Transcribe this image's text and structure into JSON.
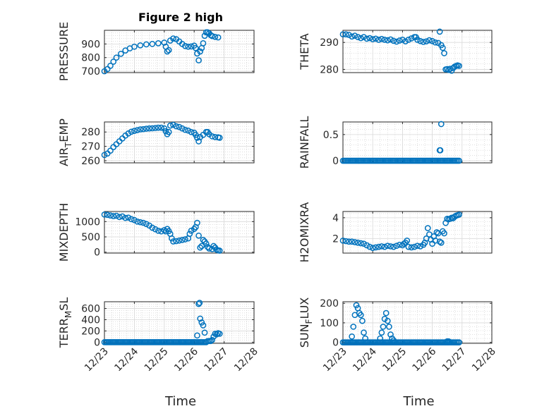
{
  "chart_data": [
    {
      "type": "scatter",
      "id": "pressure",
      "title": "Figure 2 high",
      "ylabel": "PRESSURE",
      "yticks": [
        700,
        800,
        900
      ],
      "ytick_labels": [
        "700",
        "800",
        "900"
      ],
      "ylim": [
        690,
        1000
      ],
      "xlim": [
        0,
        5
      ],
      "xticks": [
        0,
        1,
        2,
        3,
        4,
        5
      ],
      "show_xticklabels": false,
      "points": [
        [
          0,
          700
        ],
        [
          0.1,
          716
        ],
        [
          0.2,
          740
        ],
        [
          0.3,
          770
        ],
        [
          0.4,
          800
        ],
        [
          0.55,
          828
        ],
        [
          0.7,
          852
        ],
        [
          0.85,
          868
        ],
        [
          1.0,
          880
        ],
        [
          1.2,
          890
        ],
        [
          1.4,
          897
        ],
        [
          1.6,
          900
        ],
        [
          1.8,
          905
        ],
        [
          2.0,
          910
        ],
        [
          2.05,
          880
        ],
        [
          2.1,
          845
        ],
        [
          2.15,
          855
        ],
        [
          2.2,
          925
        ],
        [
          2.3,
          940
        ],
        [
          2.4,
          935
        ],
        [
          2.5,
          918
        ],
        [
          2.6,
          900
        ],
        [
          2.7,
          885
        ],
        [
          2.8,
          880
        ],
        [
          2.9,
          882
        ],
        [
          3.0,
          888
        ],
        [
          3.05,
          870
        ],
        [
          3.1,
          830
        ],
        [
          3.15,
          780
        ],
        [
          3.2,
          845
        ],
        [
          3.25,
          870
        ],
        [
          3.3,
          905
        ],
        [
          3.35,
          960
        ],
        [
          3.4,
          985
        ],
        [
          3.45,
          985
        ],
        [
          3.5,
          978
        ],
        [
          3.55,
          965
        ],
        [
          3.6,
          958
        ],
        [
          3.7,
          952
        ],
        [
          3.8,
          948
        ]
      ]
    },
    {
      "type": "scatter",
      "id": "theta",
      "ylabel": "THETA",
      "yticks": [
        280,
        290
      ],
      "ytick_labels": [
        "280",
        "290"
      ],
      "ylim": [
        278.8,
        294.5
      ],
      "xlim": [
        0,
        5
      ],
      "xticks": [
        0,
        1,
        2,
        3,
        4,
        5
      ],
      "show_xticklabels": false,
      "points": [
        [
          0,
          293
        ],
        [
          0.1,
          293
        ],
        [
          0.2,
          292.8
        ],
        [
          0.3,
          292.2
        ],
        [
          0.4,
          292.5
        ],
        [
          0.5,
          292
        ],
        [
          0.6,
          291.6
        ],
        [
          0.7,
          292
        ],
        [
          0.8,
          291.4
        ],
        [
          0.9,
          291.6
        ],
        [
          1.0,
          291.2
        ],
        [
          1.1,
          291.4
        ],
        [
          1.2,
          291
        ],
        [
          1.3,
          291.3
        ],
        [
          1.4,
          291
        ],
        [
          1.5,
          290.8
        ],
        [
          1.6,
          291.1
        ],
        [
          1.7,
          290.6
        ],
        [
          1.8,
          290.3
        ],
        [
          1.9,
          290.7
        ],
        [
          2.0,
          291
        ],
        [
          2.1,
          290.4
        ],
        [
          2.2,
          291
        ],
        [
          2.3,
          291.5
        ],
        [
          2.4,
          292
        ],
        [
          2.45,
          292
        ],
        [
          2.5,
          291
        ],
        [
          2.6,
          290.5
        ],
        [
          2.7,
          290.2
        ],
        [
          2.8,
          290.4
        ],
        [
          2.9,
          290.8
        ],
        [
          3.0,
          290.5
        ],
        [
          3.1,
          290
        ],
        [
          3.2,
          289.8
        ],
        [
          3.25,
          294
        ],
        [
          3.3,
          289
        ],
        [
          3.35,
          288
        ],
        [
          3.4,
          286
        ],
        [
          3.45,
          280
        ],
        [
          3.5,
          280.1
        ],
        [
          3.55,
          279.8
        ],
        [
          3.6,
          280.2
        ],
        [
          3.65,
          279.5
        ],
        [
          3.7,
          280.5
        ],
        [
          3.75,
          281
        ],
        [
          3.8,
          281.3
        ],
        [
          3.85,
          281.5
        ],
        [
          3.9,
          281.3
        ]
      ]
    },
    {
      "type": "scatter",
      "id": "airtemp",
      "ylabel_main": "AIR",
      "ylabel_sub": "T",
      "ylabel_tail": "EMP",
      "yticks": [
        260,
        270,
        280
      ],
      "ytick_labels": [
        "260",
        "270",
        "280"
      ],
      "ylim": [
        258.5,
        287
      ],
      "xlim": [
        0,
        5
      ],
      "xticks": [
        0,
        1,
        2,
        3,
        4,
        5
      ],
      "show_xticklabels": false,
      "points": [
        [
          0,
          264
        ],
        [
          0.1,
          265
        ],
        [
          0.2,
          267
        ],
        [
          0.3,
          269.5
        ],
        [
          0.4,
          271.5
        ],
        [
          0.5,
          273.5
        ],
        [
          0.6,
          275.5
        ],
        [
          0.7,
          277.5
        ],
        [
          0.8,
          279
        ],
        [
          0.9,
          280.2
        ],
        [
          1.0,
          280.8
        ],
        [
          1.1,
          281.3
        ],
        [
          1.2,
          281.8
        ],
        [
          1.3,
          282
        ],
        [
          1.4,
          282.3
        ],
        [
          1.5,
          282.5
        ],
        [
          1.6,
          282.6
        ],
        [
          1.7,
          282.8
        ],
        [
          1.8,
          283
        ],
        [
          1.9,
          283
        ],
        [
          2.0,
          282.5
        ],
        [
          2.05,
          280.5
        ],
        [
          2.1,
          278.5
        ],
        [
          2.15,
          280
        ],
        [
          2.2,
          284.5
        ],
        [
          2.3,
          285
        ],
        [
          2.4,
          284
        ],
        [
          2.5,
          283.5
        ],
        [
          2.6,
          282.5
        ],
        [
          2.7,
          281.5
        ],
        [
          2.8,
          281
        ],
        [
          2.9,
          280
        ],
        [
          3.0,
          279.5
        ],
        [
          3.05,
          278
        ],
        [
          3.1,
          276
        ],
        [
          3.15,
          273.5
        ],
        [
          3.2,
          276.5
        ],
        [
          3.3,
          278
        ],
        [
          3.4,
          280
        ],
        [
          3.45,
          280
        ],
        [
          3.5,
          278.5
        ],
        [
          3.6,
          277
        ],
        [
          3.7,
          276.5
        ],
        [
          3.8,
          276.3
        ],
        [
          3.85,
          276
        ]
      ]
    },
    {
      "type": "scatter",
      "id": "rainfall",
      "ylabel": "RAINFALL",
      "yticks": [
        0,
        0.5
      ],
      "ytick_labels": [
        "0",
        "0.5"
      ],
      "ylim": [
        -0.04,
        0.74
      ],
      "xlim": [
        0,
        5
      ],
      "xticks": [
        0,
        1,
        2,
        3,
        4,
        5
      ],
      "show_xticklabels": false,
      "zero_range": [
        0,
        3.9
      ],
      "zero_step": 0.05,
      "points": [
        [
          3.25,
          0.2
        ],
        [
          3.27,
          0.2
        ],
        [
          3.3,
          0.7
        ]
      ]
    },
    {
      "type": "scatter",
      "id": "mixdepth",
      "ylabel": "MIXDEPTH",
      "yticks": [
        0,
        500,
        1000
      ],
      "ytick_labels": [
        "0",
        "500",
        "1000"
      ],
      "ylim": [
        -30,
        1330
      ],
      "xlim": [
        0,
        5
      ],
      "xticks": [
        0,
        1,
        2,
        3,
        4,
        5
      ],
      "show_xticklabels": false,
      "points": [
        [
          0,
          1230
        ],
        [
          0.1,
          1220
        ],
        [
          0.2,
          1200
        ],
        [
          0.3,
          1180
        ],
        [
          0.4,
          1190
        ],
        [
          0.5,
          1150
        ],
        [
          0.6,
          1170
        ],
        [
          0.7,
          1120
        ],
        [
          0.8,
          1130
        ],
        [
          0.9,
          1080
        ],
        [
          1.0,
          1050
        ],
        [
          1.1,
          1000
        ],
        [
          1.2,
          980
        ],
        [
          1.3,
          960
        ],
        [
          1.4,
          920
        ],
        [
          1.5,
          870
        ],
        [
          1.6,
          800
        ],
        [
          1.7,
          750
        ],
        [
          1.8,
          700
        ],
        [
          1.9,
          680
        ],
        [
          2.0,
          720
        ],
        [
          2.05,
          680
        ],
        [
          2.1,
          760
        ],
        [
          2.15,
          690
        ],
        [
          2.2,
          600
        ],
        [
          2.25,
          450
        ],
        [
          2.3,
          350
        ],
        [
          2.4,
          360
        ],
        [
          2.5,
          380
        ],
        [
          2.6,
          400
        ],
        [
          2.7,
          420
        ],
        [
          2.8,
          450
        ],
        [
          2.85,
          600
        ],
        [
          2.9,
          700
        ],
        [
          3.0,
          760
        ],
        [
          3.05,
          820
        ],
        [
          3.1,
          960
        ],
        [
          3.15,
          540
        ],
        [
          3.2,
          150
        ],
        [
          3.25,
          200
        ],
        [
          3.3,
          400
        ],
        [
          3.35,
          350
        ],
        [
          3.4,
          280
        ],
        [
          3.45,
          170
        ],
        [
          3.5,
          120
        ],
        [
          3.6,
          100
        ],
        [
          3.65,
          200
        ],
        [
          3.7,
          150
        ],
        [
          3.75,
          80
        ],
        [
          3.8,
          60
        ],
        [
          3.85,
          50
        ]
      ]
    },
    {
      "type": "scatter",
      "id": "h2omixra",
      "ylabel": "H2OMIXRA",
      "yticks": [
        2,
        4
      ],
      "ytick_labels": [
        "2",
        "4"
      ],
      "ylim": [
        0.6,
        4.6
      ],
      "xlim": [
        0,
        5
      ],
      "xticks": [
        0,
        1,
        2,
        3,
        4,
        5
      ],
      "show_xticklabels": false,
      "points": [
        [
          0,
          1.8
        ],
        [
          0.1,
          1.75
        ],
        [
          0.2,
          1.7
        ],
        [
          0.3,
          1.7
        ],
        [
          0.4,
          1.65
        ],
        [
          0.5,
          1.6
        ],
        [
          0.6,
          1.55
        ],
        [
          0.7,
          1.5
        ],
        [
          0.8,
          1.35
        ],
        [
          0.9,
          1.2
        ],
        [
          1.0,
          1.1
        ],
        [
          1.1,
          1.15
        ],
        [
          1.2,
          1.2
        ],
        [
          1.3,
          1.25
        ],
        [
          1.4,
          1.2
        ],
        [
          1.5,
          1.3
        ],
        [
          1.6,
          1.25
        ],
        [
          1.7,
          1.2
        ],
        [
          1.8,
          1.3
        ],
        [
          1.9,
          1.4
        ],
        [
          2.0,
          1.35
        ],
        [
          2.05,
          1.5
        ],
        [
          2.1,
          1.6
        ],
        [
          2.15,
          1.8
        ],
        [
          2.2,
          1.2
        ],
        [
          2.3,
          1.15
        ],
        [
          2.4,
          1.2
        ],
        [
          2.5,
          1.3
        ],
        [
          2.6,
          1.25
        ],
        [
          2.7,
          1.4
        ],
        [
          2.75,
          1.6
        ],
        [
          2.8,
          2.0
        ],
        [
          2.85,
          3.0
        ],
        [
          2.9,
          2.4
        ],
        [
          2.95,
          1.9
        ],
        [
          3.0,
          1.5
        ],
        [
          3.05,
          2.2
        ],
        [
          3.1,
          1.8
        ],
        [
          3.15,
          2.6
        ],
        [
          3.2,
          2.5
        ],
        [
          3.25,
          1.7
        ],
        [
          3.3,
          1.6
        ],
        [
          3.35,
          2.7
        ],
        [
          3.4,
          2.5
        ],
        [
          3.45,
          3.5
        ],
        [
          3.5,
          3.9
        ],
        [
          3.55,
          3.85
        ],
        [
          3.6,
          3.9
        ],
        [
          3.65,
          4.0
        ],
        [
          3.7,
          3.95
        ],
        [
          3.75,
          4.1
        ],
        [
          3.8,
          4.2
        ],
        [
          3.85,
          4.25
        ],
        [
          3.9,
          4.3
        ]
      ]
    },
    {
      "type": "scatter",
      "id": "terrmsl",
      "ylabel_main": "TERR",
      "ylabel_sub": "M",
      "ylabel_tail": "SL",
      "yticks": [
        0,
        200,
        400,
        600
      ],
      "ytick_labels": [
        "0",
        "200",
        "400",
        "600"
      ],
      "ylim": [
        -20,
        720
      ],
      "xlim": [
        0,
        5
      ],
      "xticks": [
        0,
        1,
        2,
        3,
        4,
        5
      ],
      "xtick_labels": [
        "12/23",
        "12/24",
        "12/25",
        "12/26",
        "12/27",
        "12/28"
      ],
      "show_xticklabels": true,
      "xlabel": "Time",
      "zero_range": [
        0,
        3.4
      ],
      "zero_step": 0.05,
      "points": [
        [
          3.1,
          120
        ],
        [
          3.15,
          680
        ],
        [
          3.18,
          700
        ],
        [
          3.2,
          420
        ],
        [
          3.25,
          350
        ],
        [
          3.3,
          300
        ],
        [
          3.35,
          170
        ],
        [
          3.45,
          20
        ],
        [
          3.5,
          20
        ],
        [
          3.55,
          20
        ],
        [
          3.6,
          40
        ],
        [
          3.65,
          100
        ],
        [
          3.7,
          150
        ],
        [
          3.75,
          140
        ],
        [
          3.8,
          160
        ],
        [
          3.85,
          150
        ]
      ]
    },
    {
      "type": "scatter",
      "id": "sunflux",
      "ylabel_main": "SUN",
      "ylabel_sub": "F",
      "ylabel_tail": "LUX",
      "yticks": [
        0,
        100,
        200
      ],
      "ytick_labels": [
        "0",
        "100",
        "200"
      ],
      "ylim": [
        -5,
        208
      ],
      "xlim": [
        0,
        5
      ],
      "xticks": [
        0,
        1,
        2,
        3,
        4,
        5
      ],
      "xtick_labels": [
        "12/23",
        "12/24",
        "12/25",
        "12/26",
        "12/27",
        "12/28"
      ],
      "show_xticklabels": true,
      "xlabel": "Time",
      "zero_range": [
        0,
        3.9
      ],
      "zero_step": 0.05,
      "points": [
        [
          0.3,
          30
        ],
        [
          0.35,
          80
        ],
        [
          0.4,
          140
        ],
        [
          0.45,
          190
        ],
        [
          0.5,
          175
        ],
        [
          0.55,
          150
        ],
        [
          0.6,
          140
        ],
        [
          0.65,
          110
        ],
        [
          0.7,
          50
        ],
        [
          0.75,
          20
        ],
        [
          1.25,
          20
        ],
        [
          1.3,
          50
        ],
        [
          1.35,
          80
        ],
        [
          1.4,
          120
        ],
        [
          1.45,
          150
        ],
        [
          1.5,
          110
        ],
        [
          1.55,
          80
        ],
        [
          1.6,
          40
        ],
        [
          1.65,
          20
        ],
        [
          1.7,
          10
        ],
        [
          3.5,
          5
        ],
        [
          3.55,
          5
        ]
      ]
    }
  ],
  "colors": {
    "marker": "#0072bd",
    "axis": "#262626",
    "grid_major": "#d9d9d9",
    "grid_minor": "#bfbfbf"
  }
}
